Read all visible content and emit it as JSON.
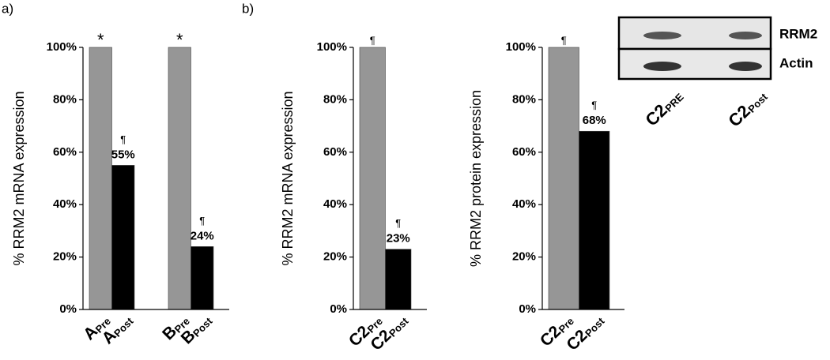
{
  "panel_labels": [
    "a)",
    "b)"
  ],
  "chart_data": [
    {
      "type": "bar",
      "y_label": "% RRM2 mRNA expression",
      "categories": [
        {
          "main": "A",
          "sub": "Pre"
        },
        {
          "main": "A",
          "sub": "Post"
        },
        {
          "main": "B",
          "sub": "Pre"
        },
        {
          "main": "B",
          "sub": "Post"
        }
      ],
      "values": [
        100,
        55,
        100,
        24
      ],
      "value_labels": [
        null,
        "55%",
        null,
        "24%"
      ],
      "markers": [
        "*",
        "¶",
        "*",
        "¶"
      ],
      "colors": [
        "#969696",
        "#000000",
        "#969696",
        "#000000"
      ],
      "ylim": [
        0,
        100
      ],
      "yticks": [
        {
          "value": 0,
          "label": "0%"
        },
        {
          "value": 20,
          "label": "20%"
        },
        {
          "value": 40,
          "label": "40%"
        },
        {
          "value": 60,
          "label": "60%"
        },
        {
          "value": 80,
          "label": "80%"
        },
        {
          "value": 100,
          "label": "100%"
        }
      ]
    },
    {
      "type": "bar",
      "y_label": "% RRM2 mRNA expression",
      "categories": [
        {
          "main": "C2",
          "sub": "Pre"
        },
        {
          "main": "C2",
          "sub": "Post"
        }
      ],
      "values": [
        100,
        23
      ],
      "value_labels": [
        null,
        "23%"
      ],
      "markers": [
        "¶",
        "¶"
      ],
      "colors": [
        "#969696",
        "#000000"
      ],
      "ylim": [
        0,
        100
      ],
      "yticks": [
        {
          "value": 0,
          "label": "0%"
        },
        {
          "value": 20,
          "label": "20%"
        },
        {
          "value": 40,
          "label": "40%"
        },
        {
          "value": 60,
          "label": "60%"
        },
        {
          "value": 80,
          "label": "80%"
        },
        {
          "value": 100,
          "label": "100%"
        }
      ]
    },
    {
      "type": "bar",
      "y_label": "% RRM2 protein expression",
      "categories": [
        {
          "main": "C2",
          "sub": "Pre"
        },
        {
          "main": "C2",
          "sub": "Post"
        }
      ],
      "values": [
        100,
        68
      ],
      "value_labels": [
        null,
        "68%"
      ],
      "markers": [
        "¶",
        "¶"
      ],
      "colors": [
        "#969696",
        "#000000"
      ],
      "ylim": [
        0,
        100
      ],
      "yticks": [
        {
          "value": 0,
          "label": "0%"
        },
        {
          "value": 20,
          "label": "20%"
        },
        {
          "value": 40,
          "label": "40%"
        },
        {
          "value": 60,
          "label": "60%"
        },
        {
          "value": 80,
          "label": "80%"
        },
        {
          "value": 100,
          "label": "100%"
        }
      ]
    }
  ],
  "blot": {
    "rows": [
      "RRM2",
      "Actin"
    ],
    "lanes": [
      {
        "main": "C2",
        "sub": "PRE"
      },
      {
        "main": "C2",
        "sub": "Post"
      }
    ]
  }
}
